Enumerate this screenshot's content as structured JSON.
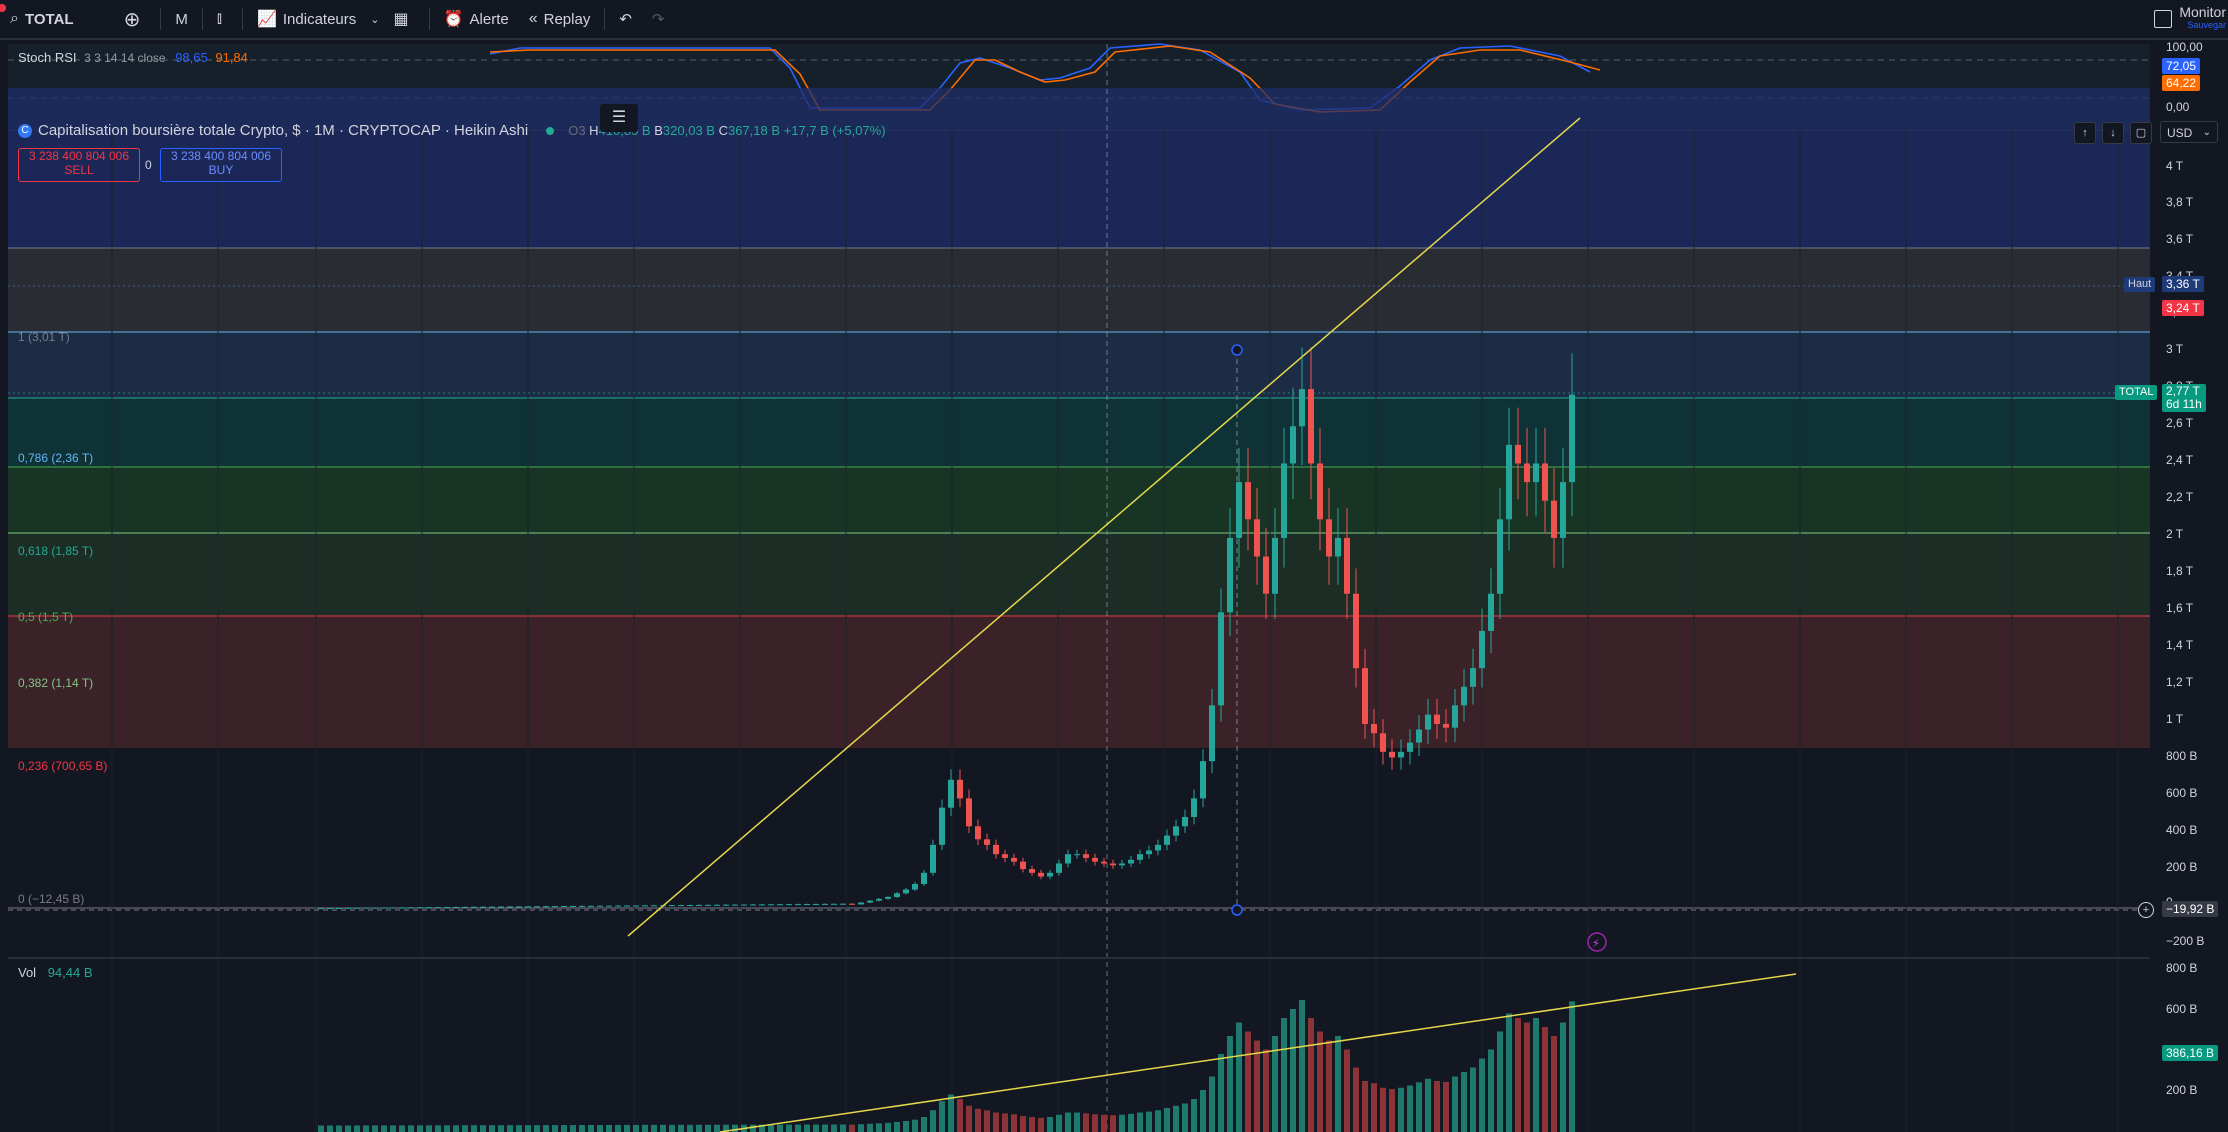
{
  "toolbar": {
    "symbol": "TOTAL",
    "interval": "M",
    "indicators_label": "Indicateurs",
    "alert_label": "Alerte",
    "replay_label": "Replay",
    "monitor_label": "Monitor",
    "monitor_sub": "Sauvegar"
  },
  "stoch_rsi": {
    "title": "Stoch RSI",
    "params": "3 3 14 14 close",
    "k_value": "98,65",
    "d_value": "91,84",
    "scale_top": "100,00",
    "scale_bottom": "0,00",
    "k_badge": "72,05",
    "d_badge": "64,22",
    "colors": {
      "k": "#2962ff",
      "d": "#ff6d00"
    }
  },
  "main_chart": {
    "title": "Capitalisation boursière totale Crypto, $ · 1M · CRYPTOCAP · Heikin Ashi",
    "open_partial": "O3",
    "high_key": "H",
    "high_value": "410,85 B",
    "low_key": "B",
    "low_value": "320,03 B",
    "close_key": "C",
    "close_value": "367,18 B",
    "change": "+17,7 B (+5,07%)",
    "sell_price": "3 238 400 804 006",
    "sell_label": "SELL",
    "buy_price": "3 238 400 804 006",
    "buy_label": "BUY",
    "spread": "0",
    "currency": "USD",
    "fib_levels": [
      {
        "label": "1 (3,01 T)",
        "value": 3.01,
        "color": "#787b86"
      },
      {
        "label": "0,786 (2,36 T)",
        "value": 2.36,
        "color": "#64b5f6"
      },
      {
        "label": "0,618 (1,85 T)",
        "value": 1.85,
        "color": "#22ab94"
      },
      {
        "label": "0,5 (1,5 T)",
        "value": 1.5,
        "color": "#4caf50"
      },
      {
        "label": "0,382 (1,14 T)",
        "value": 1.14,
        "color": "#81c784"
      },
      {
        "label": "0,236 (700,65 B)",
        "value": 0.70065,
        "color": "#f23645"
      },
      {
        "label": "0 (−12,45 B)",
        "value": -0.01245,
        "color": "#787b86"
      }
    ],
    "price_ticks": [
      "4 T",
      "3,8 T",
      "3,6 T",
      "3,4 T",
      "3,2 T",
      "3 T",
      "2,8 T",
      "2,6 T",
      "2,4 T",
      "2,2 T",
      "2 T",
      "1,8 T",
      "1,6 T",
      "1,4 T",
      "1,2 T",
      "1 T",
      "800 B",
      "600 B",
      "400 B",
      "200 B",
      "0",
      "−200 B"
    ],
    "high_tag": "Haut",
    "high_badge": "3,36 T",
    "current_red_badge": "3,24 T",
    "symbol_tag": "TOTAL",
    "last_price": "2,77 T",
    "countdown": "6d 11h",
    "crosshair_price": "−19,92 B"
  },
  "volume": {
    "title": "Vol",
    "value": "94,44 B",
    "ticks": [
      "800 B",
      "600 B",
      "400 B",
      "200 B"
    ],
    "last_badge": "386,16 B"
  }
}
